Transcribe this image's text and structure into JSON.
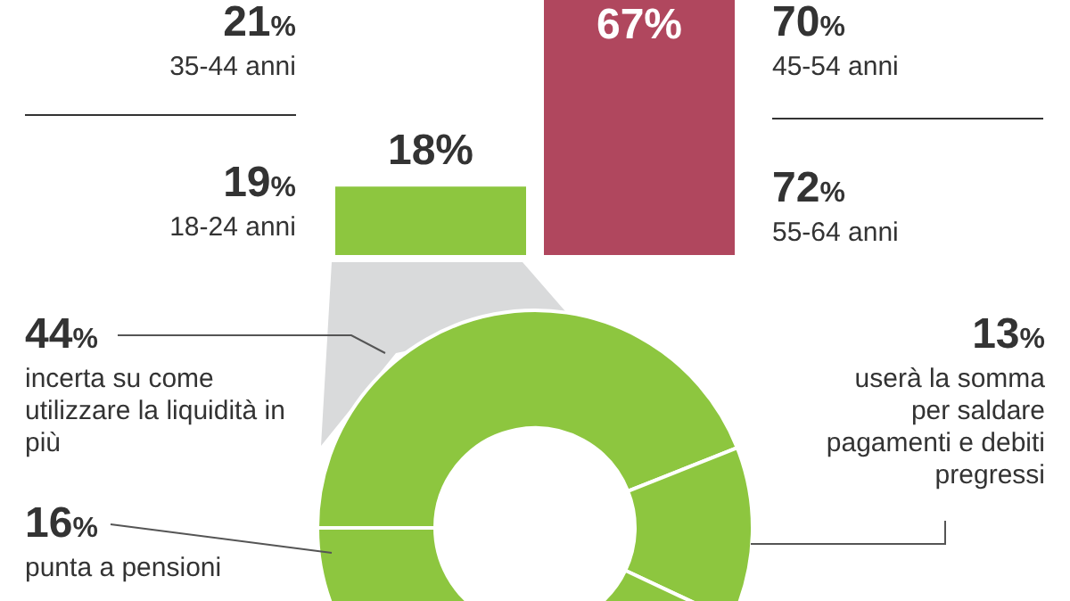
{
  "chart_data": [
    {
      "type": "other",
      "categories": [
        "35-44 anni",
        "18-24 anni",
        "45-54 anni",
        "55-64 anni"
      ],
      "values": [
        21,
        19,
        70,
        72
      ],
      "value_labels": [
        "21%",
        "19%",
        "70%",
        "72%"
      ]
    },
    {
      "type": "bar",
      "categories": [
        null,
        null
      ],
      "values": [
        18,
        67
      ],
      "colors": [
        "#8dc63f",
        "#b0475e"
      ],
      "value_labels": [
        "18%",
        "67%"
      ]
    },
    {
      "type": "donut",
      "categories": [
        "incerta su come utilizzare la liquidità in più",
        "userà la somma per saldare pagamenti e debiti pregressi",
        null,
        "punta a pensioni"
      ],
      "values": [
        44,
        13,
        27,
        16
      ],
      "colors": [
        "#8dc63f",
        "#8dc63f",
        "#8dc63f",
        "#8dc63f"
      ],
      "value_labels": [
        "44%",
        "13%",
        null,
        "16%"
      ]
    }
  ]
}
